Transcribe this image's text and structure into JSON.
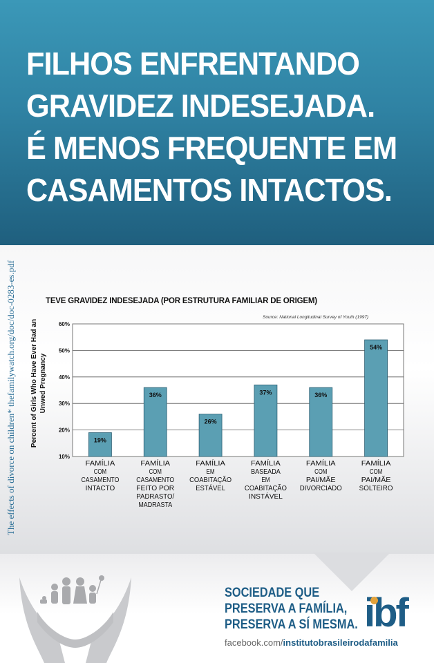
{
  "header": {
    "headline_lines": [
      "FILHOS ENFRENTANDO",
      "GRAVIDEZ INDESEJADA.",
      "É MENOS FREQUENTE EM",
      "CASAMENTOS INTACTOS."
    ],
    "colors": {
      "band": "#2f82a3",
      "dark": "#1f5f7e"
    }
  },
  "side_note": "The effects of divorce on children*   thefamilywatch.org/doc/doc-0283-es.pdf",
  "chart_data": {
    "type": "bar",
    "title": "TEVE GRAVIDEZ INDESEJADA (POR ESTRUTURA FAMILIAR DE ORIGEM)",
    "source": "Source: National Longitudinal Survey of Youth (1997)",
    "ylabel": "Percent of Girls Who Have Ever Had an Unwed Pregnancy",
    "ylim": [
      10,
      60
    ],
    "yticks": [
      "10%",
      "20%",
      "30%",
      "40%",
      "50%",
      "60%"
    ],
    "grid": true,
    "bar_color": "#5b9fb3",
    "categories": [
      [
        "FAMÍLIA",
        "COM",
        "CASAMENTO",
        "INTACTO"
      ],
      [
        "FAMÍLIA",
        "COM",
        "CASAMENTO",
        "FEITO POR",
        "PADRASTO/",
        "MADRASTA"
      ],
      [
        "FAMÍLIA",
        "EM",
        "COABITAÇÃO",
        "ESTÁVEL"
      ],
      [
        "FAMÍLIA",
        "BASEADA",
        "EM",
        "COABITAÇÃO",
        "INSTÁVEL"
      ],
      [
        "FAMÍLIA",
        "COM",
        "PAI/MÃE",
        "DIVORCIADO"
      ],
      [
        "FAMÍLIA",
        "COM",
        "PAI/MÃE",
        "SOLTEIRO"
      ]
    ],
    "values": [
      19,
      36,
      26,
      37,
      36,
      54
    ],
    "data_labels": [
      "19%",
      "36%",
      "26%",
      "37%",
      "36%",
      "54%"
    ]
  },
  "footer": {
    "slogan_lines": [
      "SOCIEDADE QUE",
      "PRESERVA A FAMÍLIA,",
      "PRESERVA A SÍ MESMA."
    ],
    "url_prefix": "facebook.com/",
    "url_handle": "institutobrasileirodafamilia",
    "logo_text": "ibf",
    "logo_color": "#1e5d86",
    "logo_dot_color": "#e3a23a",
    "icon": "family-in-hands-icon"
  }
}
